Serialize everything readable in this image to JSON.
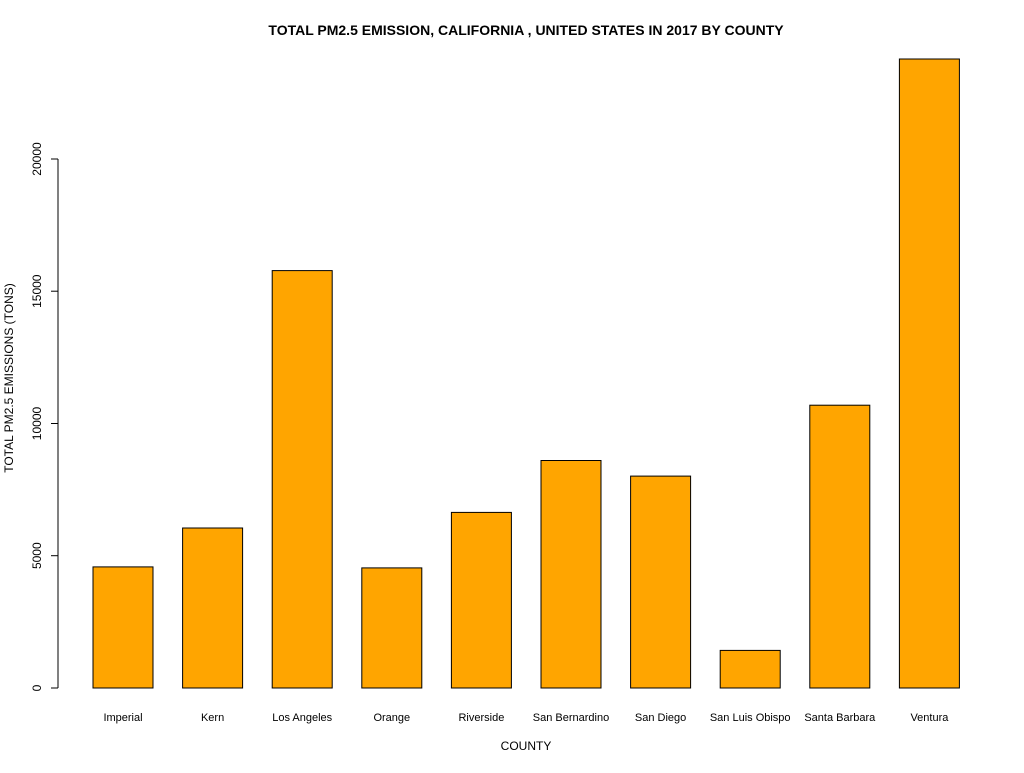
{
  "chart_data": {
    "type": "bar",
    "title": "TOTAL PM2.5 EMISSION, CALIFORNIA , UNITED STATES IN 2017 BY COUNTY",
    "xlabel": "COUNTY",
    "ylabel": "TOTAL PM2.5 EMISSIONS (TONS)",
    "categories": [
      "Imperial",
      "Kern",
      "Los Angeles",
      "Orange",
      "Riverside",
      "San Bernardino",
      "San Diego",
      "San Luis Obispo",
      "Santa Barbara",
      "Ventura"
    ],
    "values": [
      4580,
      6050,
      15780,
      4540,
      6640,
      8600,
      8010,
      1420,
      10690,
      23780
    ],
    "yticks": [
      0,
      5000,
      10000,
      15000,
      20000
    ],
    "ylim": [
      0,
      23780
    ],
    "grid": false,
    "legend": "none",
    "colors": {
      "bar_fill": "#FFA500",
      "bar_stroke": "#000000",
      "axis": "#000000"
    }
  }
}
